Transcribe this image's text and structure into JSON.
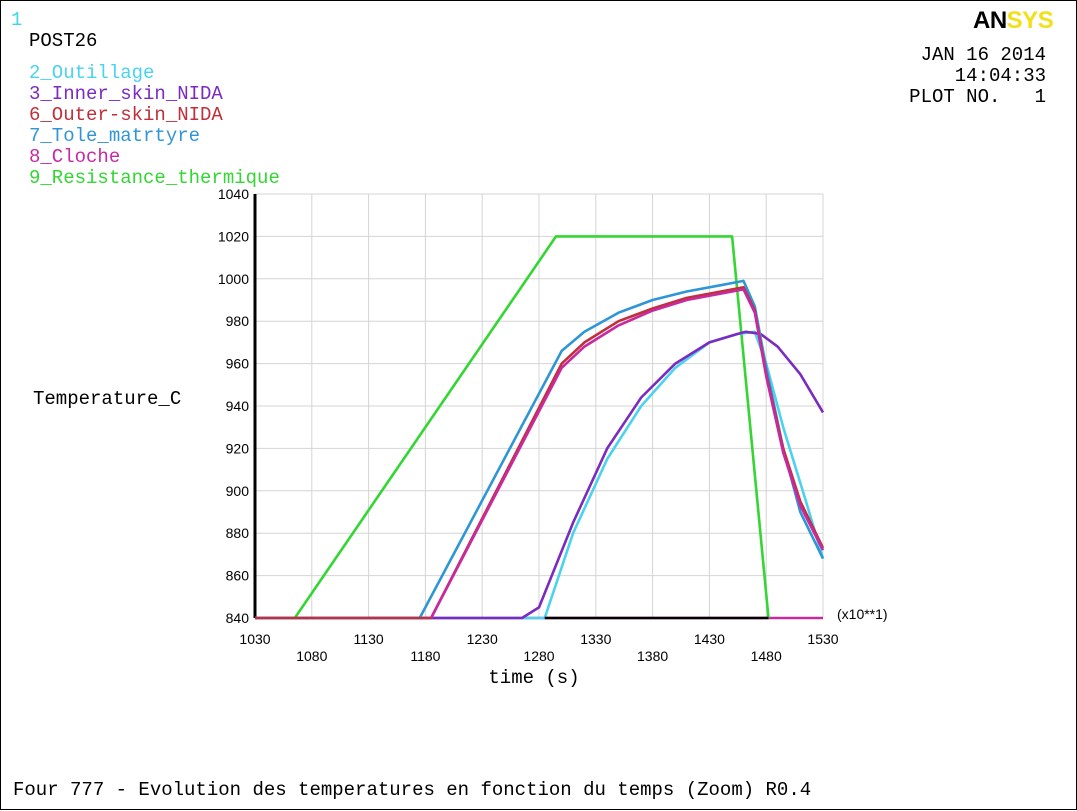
{
  "window_number": "1",
  "program": "POST26",
  "logo": {
    "part1": "AN",
    "part2": "SYS"
  },
  "header": {
    "date": "JAN 16 2014",
    "time": "14:04:33",
    "plot_no": "PLOT NO.   1"
  },
  "footer": "Four 777 - Evolution des temperatures en fonction du temps (Zoom) R0.4",
  "colors": {
    "window_number": "#3fd6e6",
    "series_outillage": "#49d3ef",
    "series_inner": "#7b2bbf",
    "series_outer": "#c0303a",
    "series_tole": "#2f96d6",
    "series_cloche": "#c72aa0",
    "series_resistance": "#33d633"
  },
  "chart_data": {
    "type": "line",
    "ylabel": "Temperature_C",
    "xlabel": "time  (s)",
    "x_multiplier": "(x10**1)",
    "ylim": [
      840,
      1040
    ],
    "xlim": [
      1030,
      1530
    ],
    "yticks": [
      840,
      860,
      880,
      900,
      920,
      940,
      960,
      980,
      1000,
      1020,
      1040
    ],
    "xticks_upper": [
      1030,
      1130,
      1230,
      1330,
      1430,
      1530
    ],
    "xticks_lower": [
      1080,
      1180,
      1280,
      1380,
      1480
    ],
    "grid": true,
    "series": [
      {
        "name": "2_Outillage",
        "color": "#49d3ef",
        "x": [
          1030,
          1285,
          1310,
          1340,
          1370,
          1400,
          1430,
          1455,
          1470,
          1480,
          1495,
          1515,
          1530
        ],
        "y": [
          840,
          840,
          880,
          915,
          940,
          958,
          970,
          974,
          975,
          960,
          930,
          895,
          868
        ]
      },
      {
        "name": "3_Inner_skin_NIDA",
        "color": "#7b2bbf",
        "x": [
          1030,
          1265,
          1280,
          1310,
          1340,
          1370,
          1400,
          1430,
          1455,
          1462,
          1475,
          1490,
          1510,
          1530
        ],
        "y": [
          840,
          840,
          845,
          885,
          920,
          944,
          960,
          970,
          974,
          975,
          974,
          968,
          955,
          937
        ]
      },
      {
        "name": "6_Outer-skin_NIDA",
        "color": "#c0303a",
        "x": [
          1030,
          1185,
          1300,
          1320,
          1350,
          1380,
          1410,
          1440,
          1460,
          1470,
          1480,
          1495,
          1510,
          1530
        ],
        "y": [
          840,
          840,
          960,
          970,
          980,
          986,
          991,
          994,
          996,
          985,
          955,
          920,
          895,
          873
        ]
      },
      {
        "name": "7_Tole_matrtyre",
        "color": "#2f96d6",
        "x": [
          1030,
          1175,
          1300,
          1320,
          1350,
          1380,
          1410,
          1440,
          1460,
          1470,
          1480,
          1495,
          1510,
          1530
        ],
        "y": [
          840,
          840,
          966,
          975,
          984,
          990,
          994,
          997,
          999,
          987,
          958,
          920,
          890,
          868
        ]
      },
      {
        "name": "8_Cloche",
        "color": "#c72aa0",
        "x": [
          1030,
          1530
        ],
        "y": [
          840,
          840
        ]
      },
      {
        "name": "9_Resistance_thermique",
        "color": "#33d633",
        "x": [
          1030,
          1065,
          1295,
          1450,
          1482
        ],
        "y": [
          840,
          840,
          1020,
          1020,
          840
        ]
      }
    ],
    "series_overlay": [
      {
        "name": "8_Cloche",
        "color": "#c72aa0",
        "x": [
          1185,
          1300,
          1320,
          1350,
          1380,
          1410,
          1440,
          1460,
          1470,
          1480,
          1495,
          1510,
          1530
        ],
        "y": [
          840,
          958,
          968,
          978,
          985,
          990,
          993,
          995,
          984,
          954,
          918,
          893,
          872
        ]
      },
      {
        "name": "baseline",
        "color": "#000000",
        "x": [
          1285,
          1482
        ],
        "y": [
          840,
          840
        ]
      }
    ]
  }
}
